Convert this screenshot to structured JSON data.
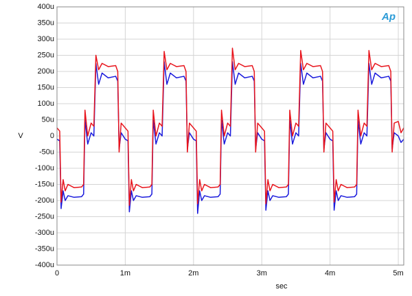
{
  "chart_data": {
    "type": "line",
    "logo": "Ap",
    "xlabel": "sec",
    "ylabel": "V",
    "x": [
      0,
      4e-05,
      6e-05,
      9e-05,
      0.00012,
      0.00016,
      0.00025,
      0.00036,
      0.00039,
      0.00041,
      0.00045,
      0.0005,
      0.00054,
      0.00057,
      0.00061,
      0.00066,
      0.00075,
      0.00086,
      0.00089,
      0.00091,
      0.00094,
      0.001,
      0.00104,
      0.00106,
      0.00109,
      0.00112,
      0.00116,
      0.00125,
      0.00136,
      0.00139,
      0.00141,
      0.00145,
      0.0015,
      0.00154,
      0.00157,
      0.00161,
      0.00166,
      0.00175,
      0.00186,
      0.00189,
      0.00191,
      0.00194,
      0.002,
      0.00204,
      0.00206,
      0.00209,
      0.00212,
      0.00216,
      0.00225,
      0.00236,
      0.00239,
      0.00241,
      0.00245,
      0.0025,
      0.00254,
      0.00257,
      0.00261,
      0.00266,
      0.00275,
      0.00286,
      0.00289,
      0.00291,
      0.00294,
      0.003,
      0.00304,
      0.00306,
      0.00309,
      0.00312,
      0.00316,
      0.00325,
      0.00336,
      0.00339,
      0.00341,
      0.00345,
      0.0035,
      0.00354,
      0.00357,
      0.00361,
      0.00366,
      0.00375,
      0.00386,
      0.00389,
      0.00391,
      0.00394,
      0.004,
      0.00404,
      0.00406,
      0.00409,
      0.00412,
      0.00416,
      0.00425,
      0.00436,
      0.00439,
      0.00441,
      0.00445,
      0.0045,
      0.00454,
      0.00457,
      0.00461,
      0.00466,
      0.00475,
      0.00486,
      0.00489,
      0.00491,
      0.00494,
      0.005,
      0.00504,
      0.00508
    ],
    "series": [
      {
        "color": "#e8141c",
        "values": [
          2.5e-05,
          1.5e-05,
          -0.000205,
          -0.000135,
          -0.00017,
          -0.00015,
          -0.00016,
          -0.000158,
          -0.00015,
          8e-05,
          0,
          4e-05,
          3e-05,
          0.00025,
          0.000205,
          0.000225,
          0.000215,
          0.000218,
          0.0002,
          -5e-05,
          4e-05,
          2.5e-05,
          1.5e-05,
          -0.000215,
          -0.000135,
          -0.00017,
          -0.00015,
          -0.00016,
          -0.000158,
          -0.00015,
          8e-05,
          0,
          4e-05,
          3e-05,
          0.000262,
          0.000205,
          0.000225,
          0.000215,
          0.000218,
          0.0002,
          -5e-05,
          4e-05,
          2.5e-05,
          1.5e-05,
          -0.00021,
          -0.000135,
          -0.00017,
          -0.00015,
          -0.00016,
          -0.000158,
          -0.00015,
          8e-05,
          0,
          4e-05,
          3e-05,
          0.000272,
          0.000205,
          0.000225,
          0.000215,
          0.000218,
          0.0002,
          -5e-05,
          4e-05,
          2.5e-05,
          1.5e-05,
          -0.00021,
          -0.000135,
          -0.00017,
          -0.00015,
          -0.00016,
          -0.000158,
          -0.00015,
          8e-05,
          0,
          4e-05,
          3e-05,
          0.000265,
          0.000205,
          0.000225,
          0.000215,
          0.000218,
          0.0002,
          -5e-05,
          4e-05,
          2.5e-05,
          1.5e-05,
          -0.000205,
          -0.000135,
          -0.00017,
          -0.00015,
          -0.00016,
          -0.000158,
          -0.00015,
          8e-05,
          0,
          4e-05,
          3e-05,
          0.000265,
          0.000205,
          0.000225,
          0.000215,
          0.000218,
          0.0002,
          -5e-05,
          4e-05,
          4.5e-05,
          1e-05,
          2.5e-05
        ]
      },
      {
        "color": "#1a1adc",
        "values": [
          -1e-05,
          -1.5e-05,
          -0.000225,
          -0.00017,
          -0.0002,
          -0.000185,
          -0.00019,
          -0.000188,
          -0.00018,
          5e-05,
          -2.5e-05,
          1e-05,
          0,
          0.000225,
          0.00016,
          0.000195,
          0.00018,
          0.000185,
          0.00017,
          -4e-05,
          1e-05,
          -1e-05,
          -1.5e-05,
          -0.000235,
          -0.00017,
          -0.0002,
          -0.000185,
          -0.00019,
          -0.000188,
          -0.00018,
          5e-05,
          -2.5e-05,
          1e-05,
          0,
          0.00023,
          0.00016,
          0.000195,
          0.00018,
          0.000185,
          0.00017,
          -4e-05,
          1e-05,
          -1e-05,
          -1.5e-05,
          -0.00024,
          -0.00017,
          -0.0002,
          -0.000185,
          -0.00019,
          -0.000188,
          -0.00018,
          5e-05,
          -2.5e-05,
          1e-05,
          0,
          0.00023,
          0.00016,
          0.000195,
          0.00018,
          0.000185,
          0.00017,
          -4e-05,
          1e-05,
          -1e-05,
          -1.5e-05,
          -0.00023,
          -0.00017,
          -0.0002,
          -0.000185,
          -0.00019,
          -0.000188,
          -0.00018,
          5e-05,
          -2.5e-05,
          1e-05,
          0,
          0.000225,
          0.00016,
          0.000195,
          0.00018,
          0.000185,
          0.00017,
          -4e-05,
          1e-05,
          -1e-05,
          -1.5e-05,
          -0.00023,
          -0.00017,
          -0.0002,
          -0.000185,
          -0.00019,
          -0.000188,
          -0.00018,
          5e-05,
          -2.5e-05,
          1e-05,
          0,
          0.000225,
          0.00016,
          0.000195,
          0.00018,
          0.000185,
          0.00017,
          -4e-05,
          1e-05,
          0,
          -2e-05,
          -1e-05
        ]
      }
    ],
    "xlim": [
      0,
      0.00508
    ],
    "xticks": [
      0,
      {
        "value": 0.001,
        "label": "1m"
      },
      {
        "value": 0.002,
        "label": "2m"
      },
      {
        "value": 0.003,
        "label": "3m"
      },
      {
        "value": 0.004,
        "label": "4m"
      },
      {
        "value": 0.005,
        "label": "5m"
      }
    ],
    "ylim": [
      -0.0004,
      0.0004
    ],
    "yticks": [
      {
        "value": -0.0004,
        "label": "-400u"
      },
      {
        "value": -0.00035,
        "label": "-350u"
      },
      {
        "value": -0.0003,
        "label": "-300u"
      },
      {
        "value": -0.00025,
        "label": "-250u"
      },
      {
        "value": -0.0002,
        "label": "-200u"
      },
      {
        "value": -0.00015,
        "label": "-150u"
      },
      {
        "value": -0.0001,
        "label": "-100u"
      },
      {
        "value": -5e-05,
        "label": "-50u"
      },
      0,
      {
        "value": 5e-05,
        "label": "50u"
      },
      {
        "value": 0.0001,
        "label": "100u"
      },
      {
        "value": 0.00015,
        "label": "150u"
      },
      {
        "value": 0.0002,
        "label": "200u"
      },
      {
        "value": 0.00025,
        "label": "250u"
      },
      {
        "value": 0.0003,
        "label": "300u"
      },
      {
        "value": 0.00035,
        "label": "350u"
      },
      {
        "value": 0.0004,
        "label": "400u"
      }
    ],
    "grid": true
  }
}
